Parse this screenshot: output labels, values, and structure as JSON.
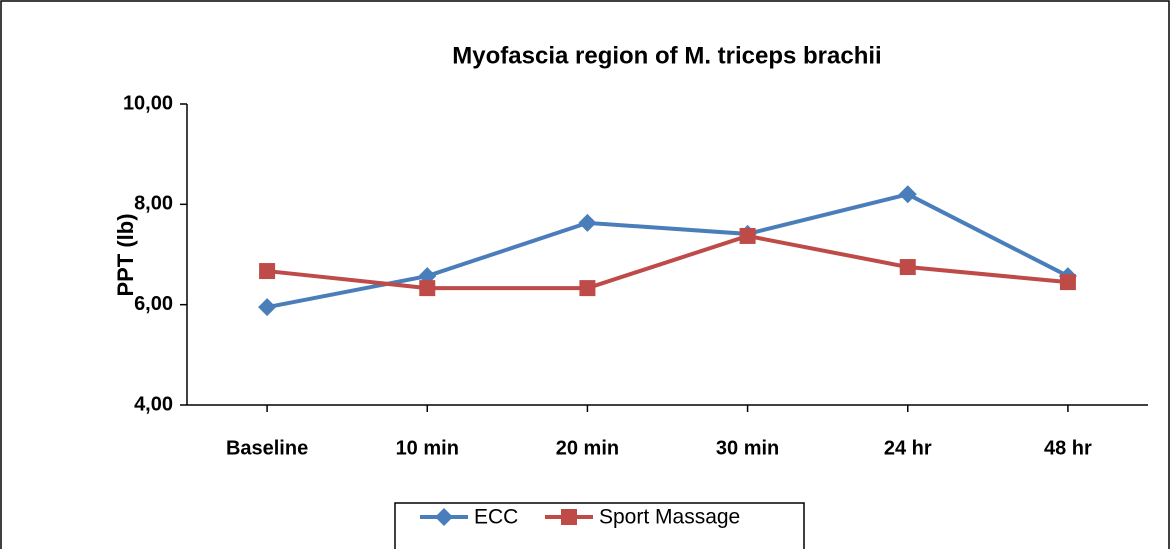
{
  "chart_data": {
    "type": "line",
    "title": "Myofascia region of M. triceps brachii",
    "y_label": "PPT (lb)",
    "categories": [
      "Baseline",
      "10 min",
      "20 min",
      "30 min",
      "24 hr",
      "48 hr"
    ],
    "series": [
      {
        "name": "ECC",
        "color": "#4a7ebb",
        "marker": "diamond",
        "values": [
          5.95,
          6.57,
          7.63,
          7.41,
          8.2,
          6.57
        ]
      },
      {
        "name": "Sport Massage",
        "color": "#be4b48",
        "marker": "square",
        "values": [
          6.67,
          6.33,
          6.33,
          7.37,
          6.75,
          6.45
        ]
      }
    ],
    "ylim": [
      4,
      10
    ],
    "yticks": [
      {
        "value": 4,
        "label": "4,00"
      },
      {
        "value": 6,
        "label": "6,00"
      },
      {
        "value": 8,
        "label": "8,00"
      },
      {
        "value": 10,
        "label": "10,00"
      }
    ],
    "grid": false,
    "legend": "bottom"
  }
}
